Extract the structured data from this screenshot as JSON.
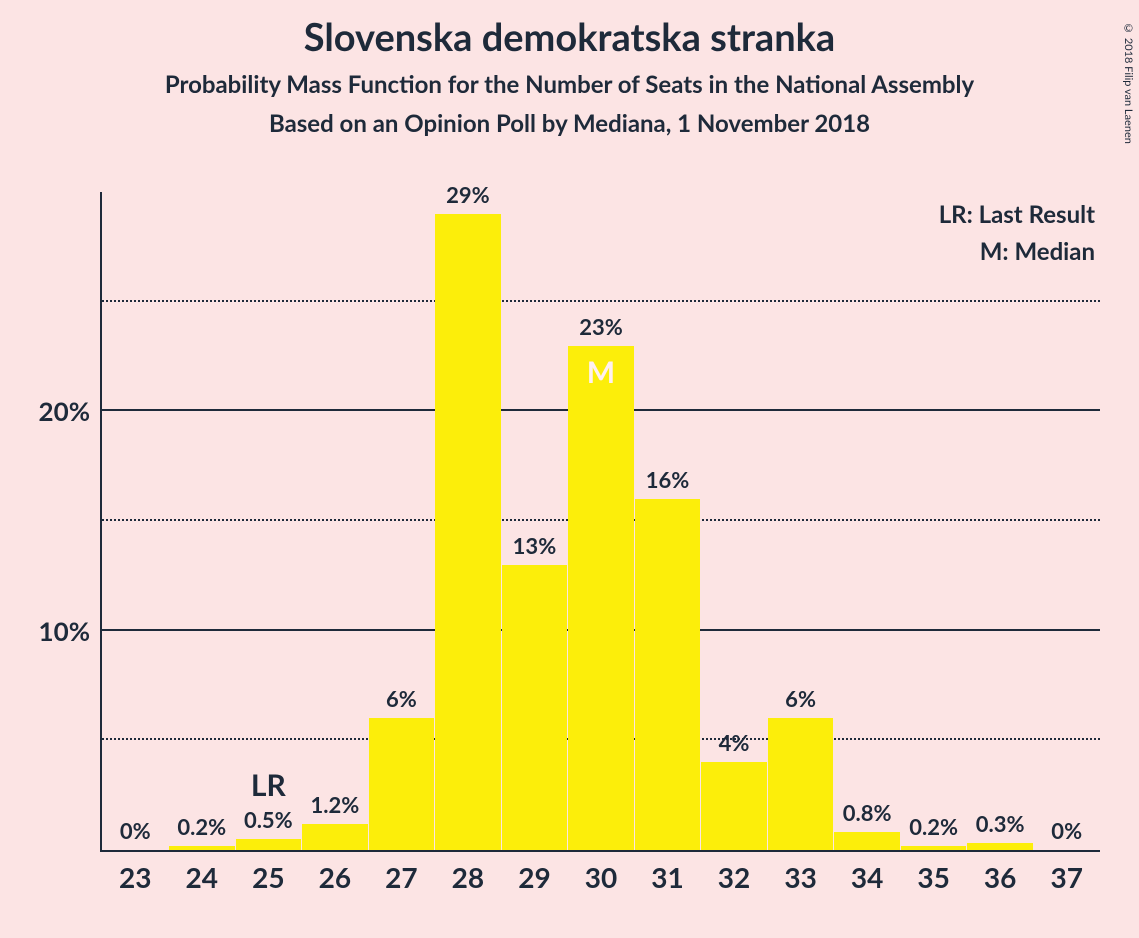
{
  "title": "Slovenska demokratska stranka",
  "subtitle1": "Probability Mass Function for the Number of Seats in the National Assembly",
  "subtitle2": "Based on an Opinion Poll by Mediana, 1 November 2018",
  "copyright": "© 2018 Filip van Laenen",
  "legend": {
    "lr": "LR: Last Result",
    "m": "M: Median"
  },
  "chart": {
    "type": "bar",
    "background_color": "#fce4e4",
    "bar_color": "#fcee0a",
    "axis_color": "#1e2a3a",
    "text_color": "#1e2a3a",
    "median_marker_color": "#fff0f0",
    "lr_marker_color": "#1e2a3a",
    "ymax": 30,
    "y_gridlines": [
      {
        "value": 5,
        "style": "dotted",
        "label": ""
      },
      {
        "value": 10,
        "style": "solid",
        "label": "10%"
      },
      {
        "value": 15,
        "style": "dotted",
        "label": ""
      },
      {
        "value": 20,
        "style": "solid",
        "label": "20%"
      },
      {
        "value": 25,
        "style": "dotted",
        "label": ""
      }
    ],
    "bars": [
      {
        "x": "23",
        "value": 0,
        "label": "0%"
      },
      {
        "x": "24",
        "value": 0.2,
        "label": "0.2%"
      },
      {
        "x": "25",
        "value": 0.5,
        "label": "0.5%",
        "marker": "LR",
        "marker_pos": "above",
        "marker_color": "#1e2a3a"
      },
      {
        "x": "26",
        "value": 1.2,
        "label": "1.2%"
      },
      {
        "x": "27",
        "value": 6,
        "label": "6%"
      },
      {
        "x": "28",
        "value": 29,
        "label": "29%"
      },
      {
        "x": "29",
        "value": 13,
        "label": "13%"
      },
      {
        "x": "30",
        "value": 23,
        "label": "23%",
        "marker": "M",
        "marker_pos": "inside",
        "marker_color": "#fff0f0"
      },
      {
        "x": "31",
        "value": 16,
        "label": "16%"
      },
      {
        "x": "32",
        "value": 4,
        "label": "4%"
      },
      {
        "x": "33",
        "value": 6,
        "label": "6%"
      },
      {
        "x": "34",
        "value": 0.8,
        "label": "0.8%"
      },
      {
        "x": "35",
        "value": 0.2,
        "label": "0.2%"
      },
      {
        "x": "36",
        "value": 0.3,
        "label": "0.3%"
      },
      {
        "x": "37",
        "value": 0,
        "label": "0%"
      }
    ]
  }
}
